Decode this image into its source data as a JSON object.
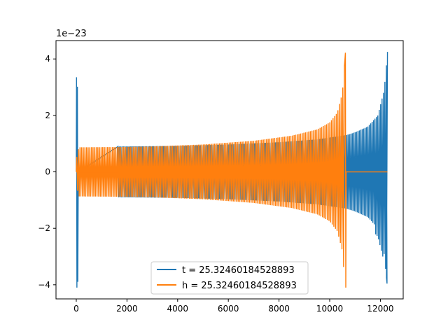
{
  "chart_data": {
    "type": "line",
    "offset_label": "1e−23",
    "xlim": [
      -800,
      12900
    ],
    "ylim": [
      -4.5,
      4.65
    ],
    "xticks": [
      0,
      2000,
      4000,
      6000,
      8000,
      10000,
      12000
    ],
    "xtick_labels": [
      "0",
      "2000",
      "4000",
      "6000",
      "8000",
      "10000",
      "12000"
    ],
    "yticks": [
      -4,
      -2,
      0,
      2,
      4
    ],
    "ytick_labels": [
      "−4",
      "−2",
      "0",
      "2",
      "4"
    ],
    "grid": false,
    "legend_position": "lower-center",
    "series": [
      {
        "name": "t = 25.32460184528893",
        "color": "#1f77b4",
        "x_range": [
          0,
          12280
        ],
        "envelope": {
          "x": [
            0,
            80,
            1650,
            4000,
            6000,
            8000,
            9500,
            10650,
            11000,
            11500,
            11900,
            12150,
            12280
          ],
          "y": [
            3.35,
            0.05,
            0.9,
            0.92,
            0.97,
            1.05,
            1.15,
            1.3,
            1.4,
            1.6,
            2.0,
            2.9,
            4.25
          ]
        },
        "burst": {
          "x_range": [
            0,
            80
          ],
          "max": 3.35,
          "min": -4.1
        }
      },
      {
        "name": "h = 25.32460184528893",
        "color": "#ff7f0e",
        "x_range": [
          0,
          12280
        ],
        "envelope": {
          "x": [
            0,
            100,
            1650,
            3000,
            5000,
            7000,
            8500,
            9500,
            10000,
            10300,
            10500,
            10620
          ],
          "y": [
            0.45,
            0.87,
            0.88,
            0.9,
            0.97,
            1.1,
            1.28,
            1.5,
            1.75,
            2.1,
            2.8,
            4.22
          ]
        },
        "min_at_end": -4.1,
        "zero_after": 10650
      }
    ]
  }
}
